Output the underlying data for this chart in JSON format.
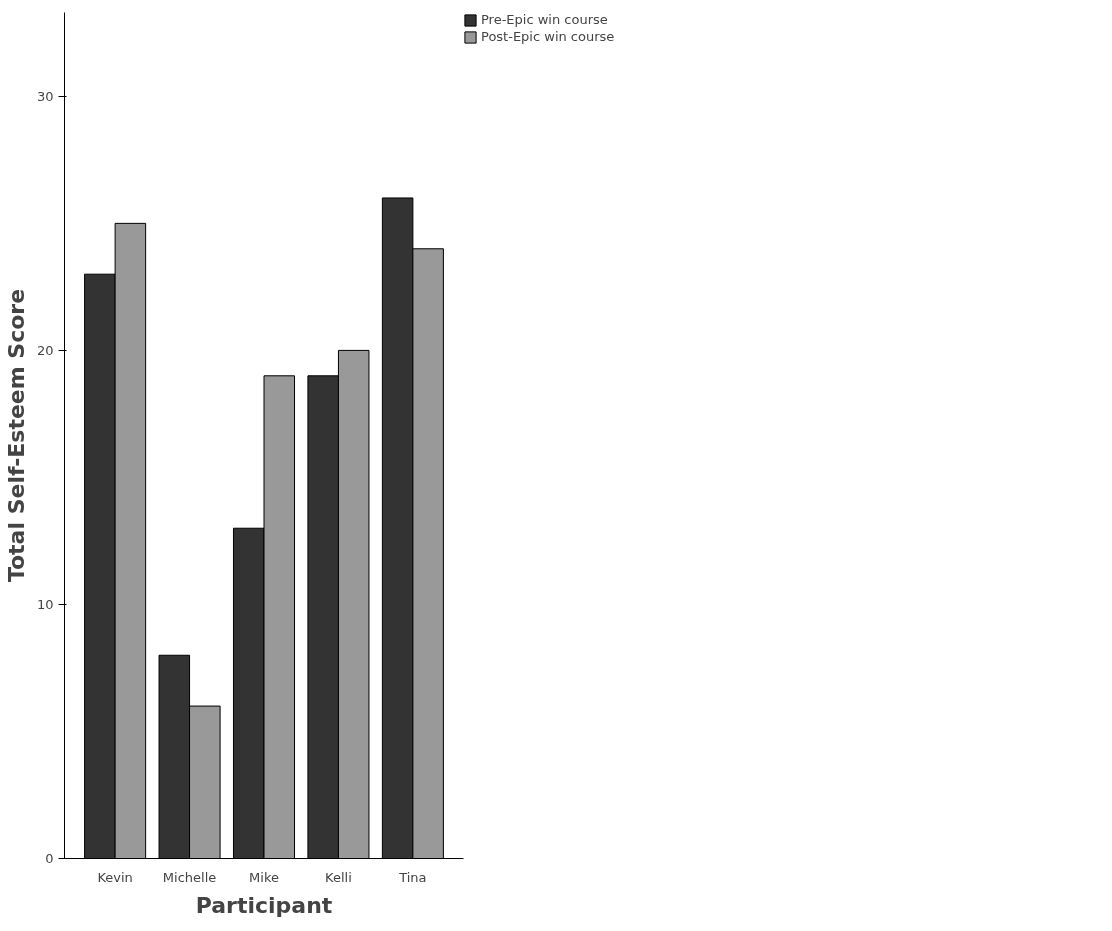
{
  "chart_data": {
    "type": "bar",
    "xlabel": "Participant",
    "ylabel": "Total Self-Esteem Score",
    "categories": [
      "Kevin",
      "Michelle",
      "Mike",
      "Kelli",
      "Tina"
    ],
    "series": [
      {
        "name": "Pre-Epic win course",
        "color": "#333333",
        "values": [
          23,
          8,
          13,
          19,
          26
        ]
      },
      {
        "name": "Post-Epic win course",
        "color": "#999999",
        "values": [
          25,
          6,
          19,
          20,
          24
        ]
      }
    ],
    "ylim": [
      0,
      33.3
    ],
    "yticks": [
      0,
      10,
      20,
      30
    ],
    "grid": false,
    "legend": "top right"
  }
}
